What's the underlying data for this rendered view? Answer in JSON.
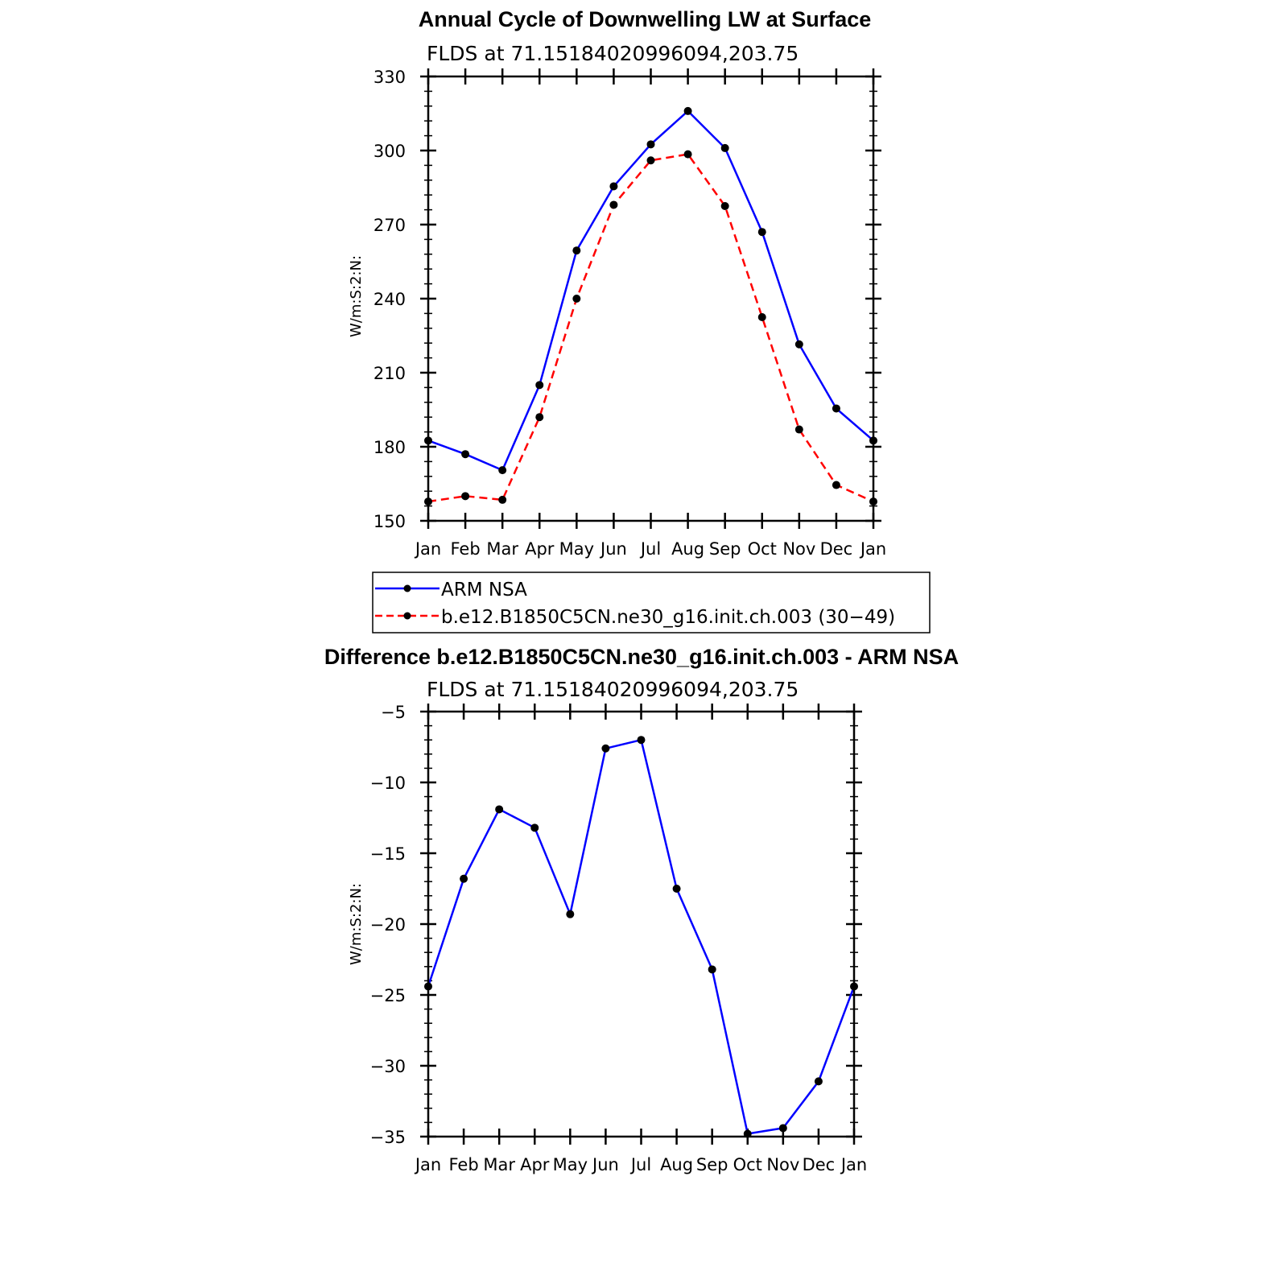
{
  "chart_data": [
    {
      "type": "line",
      "title": "Annual Cycle of Downwelling LW at Surface",
      "subtitle": "FLDS at 71.15184020996094,203.75",
      "ylabel": "W/m:S:2:N:",
      "categories": [
        "Jan",
        "Feb",
        "Mar",
        "Apr",
        "May",
        "Jun",
        "Jul",
        "Aug",
        "Sep",
        "Oct",
        "Nov",
        "Dec",
        "Jan"
      ],
      "ylim": [
        150,
        330
      ],
      "yticks": [
        "150",
        "180",
        "210",
        "240",
        "270",
        "300",
        "330"
      ],
      "series": [
        {
          "name": "ARM  NSA",
          "color": "#0000ff",
          "dashed": false,
          "values": [
            182.5,
            177,
            170.5,
            205,
            259.5,
            285.5,
            302.5,
            316,
            301,
            267,
            221.5,
            195.5,
            182.5
          ]
        },
        {
          "name": "b.e12.B1850C5CN.ne30_g16.init.ch.003 (30−49)",
          "color": "#ff0000",
          "dashed": true,
          "values": [
            157.8,
            160,
            158.5,
            192,
            240,
            278,
            296,
            298.5,
            277.5,
            232.5,
            187,
            164.5,
            157.8
          ]
        }
      ],
      "legend_position": "below"
    },
    {
      "type": "line",
      "title": "Difference b.e12.B1850C5CN.ne30_g16.init.ch.003 - ARM NSA",
      "subtitle": "FLDS at 71.15184020996094,203.75",
      "ylabel": "W/m:S:2:N:",
      "categories": [
        "Jan",
        "Feb",
        "Mar",
        "Apr",
        "May",
        "Jun",
        "Jul",
        "Aug",
        "Sep",
        "Oct",
        "Nov",
        "Dec",
        "Jan"
      ],
      "ylim": [
        -35,
        -5
      ],
      "yticks": [
        "−35",
        "−30",
        "−25",
        "−20",
        "−15",
        "−10",
        "−5"
      ],
      "series": [
        {
          "color": "#0000ff",
          "dashed": false,
          "values": [
            -24.4,
            -16.8,
            -11.9,
            -13.2,
            -19.3,
            -7.6,
            -7,
            -17.5,
            -23.2,
            -34.8,
            -34.4,
            -31.1,
            -24.4
          ]
        }
      ]
    }
  ]
}
